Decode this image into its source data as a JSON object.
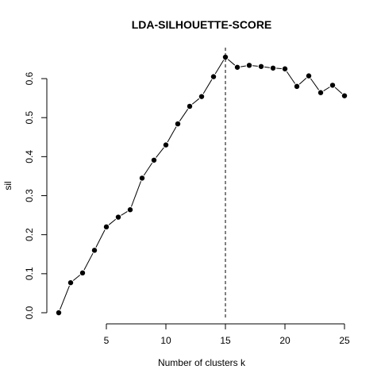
{
  "chart_data": {
    "type": "line",
    "title": "LDA-SILHOUETTE-SCORE",
    "xlabel": "Number of clusters k",
    "ylabel": "sil",
    "x": [
      1,
      2,
      3,
      4,
      5,
      6,
      7,
      8,
      9,
      10,
      11,
      12,
      13,
      14,
      15,
      16,
      17,
      18,
      19,
      20,
      21,
      22,
      23,
      24,
      25
    ],
    "series": [
      {
        "values": [
          0.0,
          0.077,
          0.102,
          0.16,
          0.22,
          0.245,
          0.264,
          0.345,
          0.391,
          0.43,
          0.484,
          0.529,
          0.554,
          0.605,
          0.655,
          0.629,
          0.634,
          0.631,
          0.627,
          0.625,
          0.58,
          0.607,
          0.564,
          0.583,
          0.556
        ],
        "markers": "filled-circle",
        "line_style": "solid",
        "color": "#000000"
      }
    ],
    "xlim": [
      1,
      25
    ],
    "ylim": [
      0.0,
      0.655
    ],
    "x_ticks": [
      5,
      10,
      15,
      20,
      25
    ],
    "y_ticks": [
      0.0,
      0.1,
      0.2,
      0.3,
      0.4,
      0.5,
      0.6
    ],
    "x_tick_labels": [
      "5",
      "10",
      "15",
      "20",
      "25"
    ],
    "y_tick_labels": [
      "0.0",
      "0.1",
      "0.2",
      "0.3",
      "0.4",
      "0.5",
      "0.6"
    ],
    "reference_line": {
      "orientation": "vertical",
      "x": 15,
      "style": "dashed"
    },
    "grid": false,
    "legend": "none"
  }
}
